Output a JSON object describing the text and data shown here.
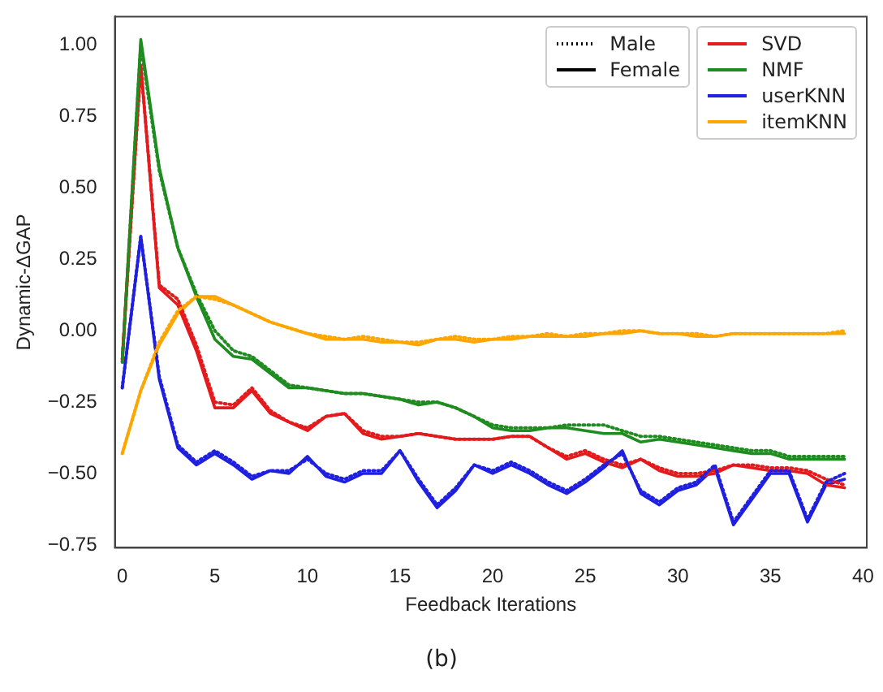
{
  "chart_data": {
    "type": "line",
    "xlabel": "Feedback Iterations",
    "ylabel": "Dynamic-ΔGAP",
    "x": [
      0,
      1,
      2,
      3,
      4,
      5,
      6,
      7,
      8,
      9,
      10,
      11,
      12,
      13,
      14,
      15,
      16,
      17,
      18,
      19,
      20,
      21,
      22,
      23,
      24,
      25,
      26,
      27,
      28,
      29,
      30,
      31,
      32,
      33,
      34,
      35,
      36,
      37,
      38,
      39
    ],
    "xlim": [
      -0.4,
      40.2
    ],
    "xticks": [
      0,
      5,
      10,
      15,
      20,
      25,
      30,
      35,
      40
    ],
    "ylim": [
      -0.76,
      1.1
    ],
    "yticks": [
      {
        "value": -0.75,
        "label": "−0.75"
      },
      {
        "value": -0.5,
        "label": "−0.50"
      },
      {
        "value": -0.25,
        "label": "−0.25"
      },
      {
        "value": 0,
        "label": "0.00"
      },
      {
        "value": 0.25,
        "label": "0.25"
      },
      {
        "value": 0.5,
        "label": "0.50"
      },
      {
        "value": 0.75,
        "label": "0.75"
      },
      {
        "value": 1,
        "label": "1.00"
      }
    ],
    "grid": false,
    "legend": "top right",
    "marker": "none",
    "annotations": [
      "Male",
      "Female",
      "(b)"
    ],
    "series": [
      {
        "color": "#e41a1c",
        "line_style": "dotted",
        "values": [
          -0.1,
          0.93,
          0.16,
          0.11,
          -0.05,
          -0.25,
          -0.26,
          -0.2,
          -0.28,
          -0.32,
          -0.34,
          -0.3,
          -0.29,
          -0.35,
          -0.37,
          -0.37,
          -0.36,
          -0.37,
          -0.38,
          -0.38,
          -0.38,
          -0.37,
          -0.37,
          -0.41,
          -0.44,
          -0.42,
          -0.45,
          -0.47,
          -0.45,
          -0.48,
          -0.5,
          -0.5,
          -0.49,
          -0.47,
          -0.47,
          -0.48,
          -0.48,
          -0.49,
          -0.52,
          -0.54
        ]
      },
      {
        "name": "SVD",
        "color": "#e41a1c",
        "line_style": "solid",
        "values": [
          -0.1,
          0.93,
          0.15,
          0.09,
          -0.07,
          -0.27,
          -0.27,
          -0.21,
          -0.29,
          -0.32,
          -0.35,
          -0.3,
          -0.29,
          -0.36,
          -0.38,
          -0.37,
          -0.36,
          -0.37,
          -0.38,
          -0.38,
          -0.38,
          -0.37,
          -0.37,
          -0.41,
          -0.45,
          -0.43,
          -0.46,
          -0.48,
          -0.45,
          -0.49,
          -0.51,
          -0.51,
          -0.5,
          -0.47,
          -0.48,
          -0.49,
          -0.49,
          -0.5,
          -0.54,
          -0.55
        ]
      },
      {
        "name": "NMF",
        "color": "#1e8c1e",
        "line_style": "solid",
        "values": [
          -0.11,
          1.02,
          0.57,
          0.29,
          0.12,
          -0.03,
          -0.09,
          -0.1,
          -0.15,
          -0.2,
          -0.2,
          -0.21,
          -0.22,
          -0.22,
          -0.23,
          -0.24,
          -0.26,
          -0.25,
          -0.27,
          -0.3,
          -0.34,
          -0.35,
          -0.35,
          -0.34,
          -0.34,
          -0.35,
          -0.36,
          -0.36,
          -0.39,
          -0.38,
          -0.39,
          -0.4,
          -0.41,
          -0.42,
          -0.43,
          -0.43,
          -0.45,
          -0.45,
          -0.45,
          -0.45
        ]
      },
      {
        "color": "#1e8c1e",
        "line_style": "dotted",
        "values": [
          -0.11,
          1.0,
          0.56,
          0.29,
          0.13,
          0.0,
          -0.07,
          -0.09,
          -0.14,
          -0.19,
          -0.2,
          -0.21,
          -0.22,
          -0.22,
          -0.23,
          -0.24,
          -0.25,
          -0.25,
          -0.27,
          -0.3,
          -0.33,
          -0.34,
          -0.34,
          -0.34,
          -0.33,
          -0.33,
          -0.33,
          -0.35,
          -0.37,
          -0.37,
          -0.38,
          -0.39,
          -0.4,
          -0.41,
          -0.42,
          -0.42,
          -0.44,
          -0.44,
          -0.44,
          -0.44
        ]
      },
      {
        "name": "userKNN",
        "color": "#1f1fe0",
        "line_style": "solid",
        "values": [
          -0.2,
          0.33,
          -0.17,
          -0.41,
          -0.47,
          -0.43,
          -0.47,
          -0.52,
          -0.49,
          -0.5,
          -0.44,
          -0.51,
          -0.53,
          -0.5,
          -0.5,
          -0.42,
          -0.53,
          -0.62,
          -0.56,
          -0.47,
          -0.5,
          -0.47,
          -0.5,
          -0.54,
          -0.57,
          -0.53,
          -0.48,
          -0.42,
          -0.57,
          -0.61,
          -0.56,
          -0.54,
          -0.48,
          -0.68,
          -0.59,
          -0.5,
          -0.5,
          -0.67,
          -0.54,
          -0.52
        ]
      },
      {
        "color": "#1f1fe0",
        "line_style": "dotted",
        "values": [
          -0.2,
          0.33,
          -0.16,
          -0.4,
          -0.46,
          -0.42,
          -0.46,
          -0.51,
          -0.49,
          -0.49,
          -0.45,
          -0.5,
          -0.52,
          -0.49,
          -0.49,
          -0.42,
          -0.52,
          -0.61,
          -0.55,
          -0.47,
          -0.49,
          -0.46,
          -0.49,
          -0.53,
          -0.56,
          -0.52,
          -0.47,
          -0.43,
          -0.56,
          -0.6,
          -0.55,
          -0.53,
          -0.47,
          -0.67,
          -0.58,
          -0.49,
          -0.49,
          -0.66,
          -0.53,
          -0.5
        ]
      },
      {
        "name": "itemKNN",
        "color": "#ffa500",
        "line_style": "solid",
        "values": [
          -0.43,
          -0.21,
          -0.05,
          0.06,
          0.12,
          0.12,
          0.09,
          0.06,
          0.03,
          0.01,
          -0.01,
          -0.03,
          -0.03,
          -0.03,
          -0.04,
          -0.04,
          -0.05,
          -0.03,
          -0.03,
          -0.04,
          -0.03,
          -0.03,
          -0.02,
          -0.02,
          -0.02,
          -0.02,
          -0.01,
          -0.01,
          0.0,
          -0.01,
          -0.01,
          -0.02,
          -0.02,
          -0.01,
          -0.01,
          -0.01,
          -0.01,
          -0.01,
          -0.01,
          -0.01
        ]
      },
      {
        "color": "#ffa500",
        "line_style": "dotted",
        "values": [
          -0.43,
          -0.21,
          -0.04,
          0.07,
          0.12,
          0.11,
          0.09,
          0.06,
          0.03,
          0.01,
          -0.01,
          -0.02,
          -0.03,
          -0.02,
          -0.03,
          -0.04,
          -0.04,
          -0.03,
          -0.02,
          -0.03,
          -0.03,
          -0.02,
          -0.02,
          -0.01,
          -0.02,
          -0.01,
          -0.01,
          0.0,
          0.0,
          -0.01,
          -0.01,
          -0.01,
          -0.02,
          -0.01,
          -0.01,
          -0.01,
          -0.01,
          -0.01,
          -0.01,
          0.0
        ]
      }
    ]
  }
}
